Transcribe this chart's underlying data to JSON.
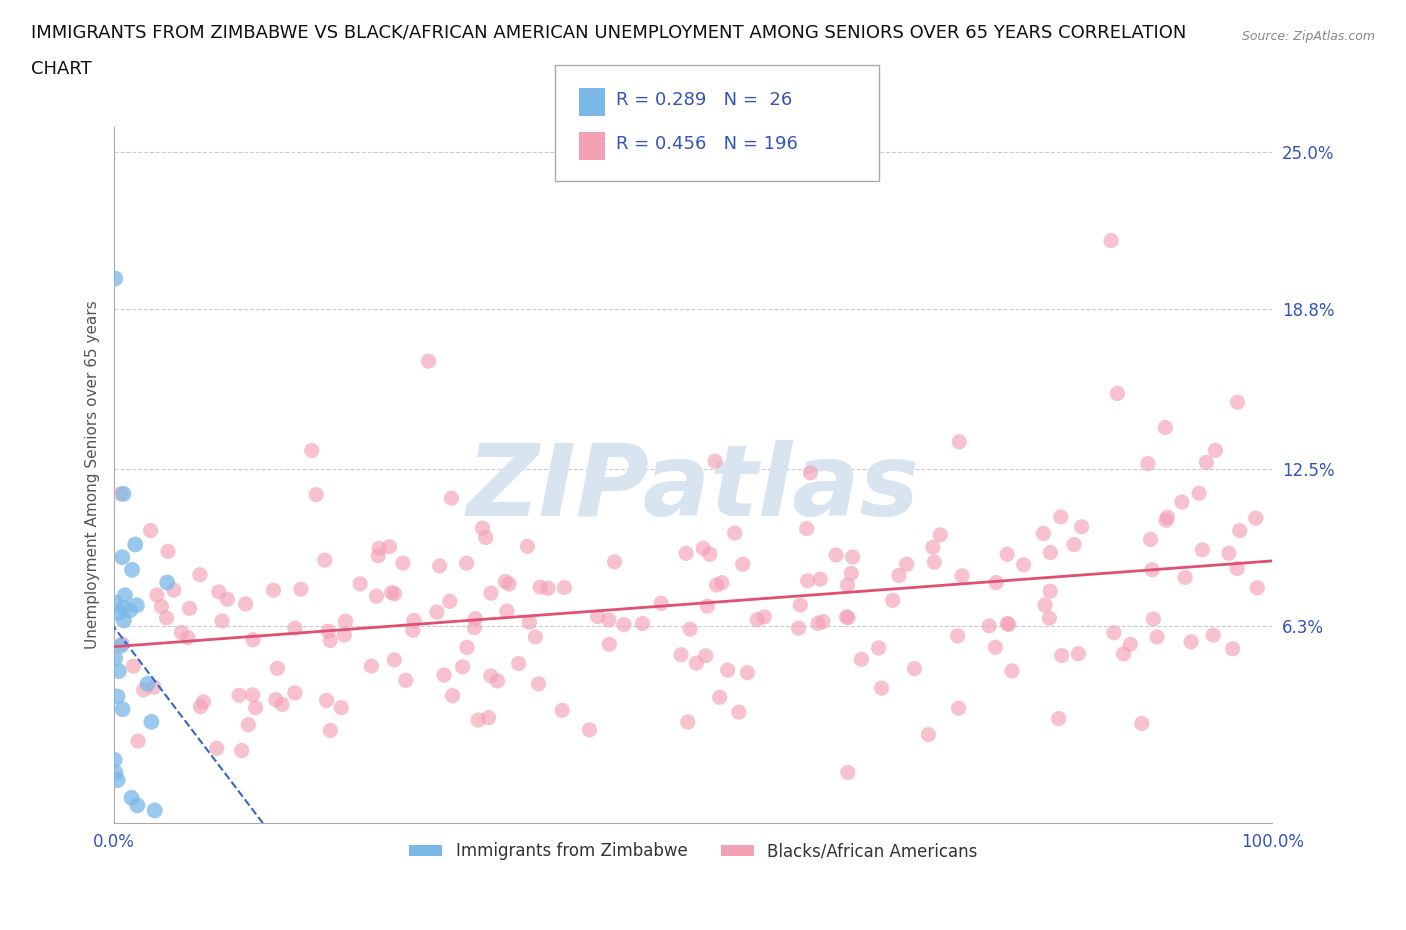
{
  "title_line1": "IMMIGRANTS FROM ZIMBABWE VS BLACK/AFRICAN AMERICAN UNEMPLOYMENT AMONG SENIORS OVER 65 YEARS CORRELATION",
  "title_line2": "CHART",
  "source_text": "Source: ZipAtlas.com",
  "ylabel": "Unemployment Among Seniors over 65 years",
  "xlim": [
    0,
    100
  ],
  "ylim": [
    -1.5,
    26
  ],
  "yticks": [
    0,
    6.3,
    12.5,
    18.8,
    25.0
  ],
  "ytick_labels": [
    "",
    "6.3%",
    "12.5%",
    "18.8%",
    "25.0%"
  ],
  "xticks": [
    0,
    100
  ],
  "xtick_labels": [
    "0.0%",
    "100.0%"
  ],
  "grid_color": "#cccccc",
  "background_color": "#ffffff",
  "watermark_text": "ZIPatlas",
  "watermark_color": "#d8e4f0",
  "series_zim": {
    "name": "Immigrants from Zimbabwe",
    "color": "#7ab8e8",
    "R": 0.289,
    "N": 26,
    "trend_color": "#3366cc",
    "trend_style": "--"
  },
  "series_baa": {
    "name": "Blacks/African Americans",
    "color": "#f4a0b5",
    "R": 0.456,
    "N": 196,
    "trend_color": "#e05070",
    "trend_style": "-"
  },
  "legend_text_color": "#3355bb",
  "title_color": "#111111",
  "title_fontsize": 13,
  "source_color": "#888888",
  "axis_label_color": "#555555",
  "tick_label_color": "#3355bb",
  "tick_label_fontsize": 12
}
